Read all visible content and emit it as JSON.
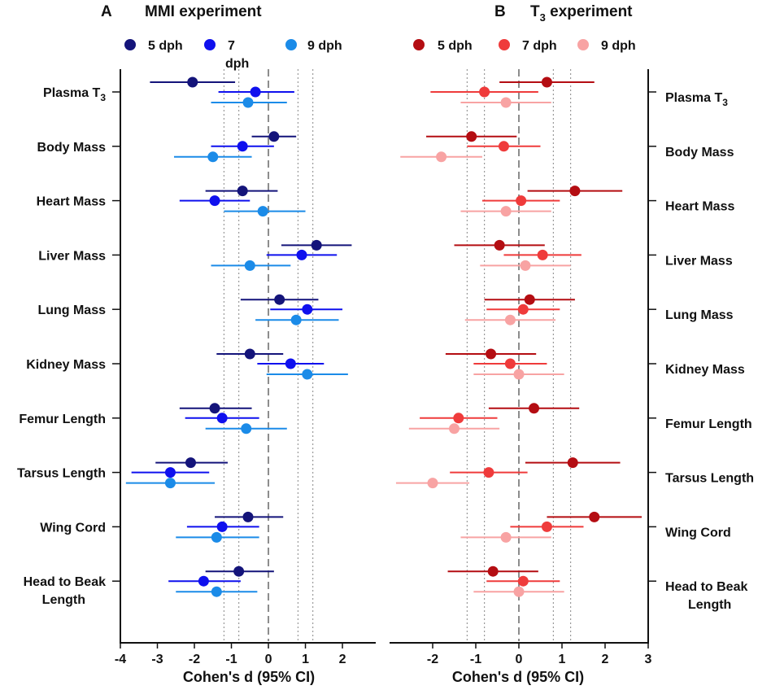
{
  "colors": {
    "mmi": [
      "#14147a",
      "#0f10ee",
      "#1b8be8"
    ],
    "t3": [
      "#b40d12",
      "#ef3b3b",
      "#f8a3a3"
    ]
  },
  "chart_data": [
    {
      "type": "forest",
      "panel_letter": "A",
      "title": "MMI experiment",
      "xlabel": "Cohen's d (95%  CI)",
      "xlim": [
        -4,
        2.9
      ],
      "xticks": [
        -4,
        -3,
        -2,
        -1,
        0,
        1,
        2
      ],
      "reference_lines": [
        -1.2,
        -0.8,
        0,
        0.8,
        1.2
      ],
      "legend": [
        {
          "label": "5 dph"
        },
        {
          "label": "7",
          "label2": "dph"
        },
        {
          "label": "9 dph"
        }
      ],
      "categories": [
        "Plasma T3",
        "Body Mass",
        "Heart Mass",
        "Liver Mass",
        "Lung Mass",
        "Kidney Mass",
        "Femur Length",
        "Tarsus Length",
        "Wing Cord",
        "Head to Beak Length"
      ],
      "series": [
        {
          "name": "5 dph",
          "d": [
            -2.05,
            0.15,
            -0.7,
            1.3,
            0.3,
            -0.5,
            -1.45,
            -2.1,
            -0.55,
            -0.8
          ],
          "lo": [
            -3.2,
            -0.45,
            -1.7,
            0.35,
            -0.75,
            -1.4,
            -2.4,
            -3.05,
            -1.45,
            -1.7
          ],
          "hi": [
            -0.9,
            0.75,
            0.25,
            2.25,
            1.35,
            0.4,
            -0.45,
            -1.1,
            0.4,
            0.15
          ]
        },
        {
          "name": "7 dph",
          "d": [
            -0.35,
            -0.7,
            -1.45,
            0.9,
            1.05,
            0.6,
            -1.25,
            -2.65,
            -1.25,
            -1.75
          ],
          "lo": [
            -1.35,
            -1.55,
            -2.4,
            -0.05,
            0.05,
            -0.3,
            -2.25,
            -3.7,
            -2.2,
            -2.7
          ],
          "hi": [
            0.7,
            0.15,
            -0.5,
            1.85,
            2.0,
            1.5,
            -0.25,
            -1.6,
            -0.25,
            -0.75
          ]
        },
        {
          "name": "9 dph",
          "d": [
            -0.55,
            -1.5,
            -0.15,
            -0.5,
            0.75,
            1.05,
            -0.6,
            -2.65,
            -1.4,
            -1.4
          ],
          "lo": [
            -1.55,
            -2.55,
            -1.2,
            -1.55,
            -0.35,
            -0.05,
            -1.7,
            -3.85,
            -2.5,
            -2.5
          ],
          "hi": [
            0.5,
            -0.45,
            1.0,
            0.6,
            1.9,
            2.15,
            0.5,
            -1.45,
            -0.25,
            -0.3
          ]
        }
      ]
    },
    {
      "type": "forest",
      "panel_letter": "B",
      "title": "T",
      "title_sub": "3",
      "title_rest": " experiment",
      "xlabel": "Cohen's d (95%  CI)",
      "xlim": [
        -3,
        3
      ],
      "xticks": [
        -2,
        -1,
        0,
        1,
        2,
        3
      ],
      "reference_lines": [
        -1.2,
        -0.8,
        0,
        0.8,
        1.2
      ],
      "legend": [
        {
          "label": "5 dph"
        },
        {
          "label": "7 dph"
        },
        {
          "label": "9 dph"
        }
      ],
      "categories": [
        "Plasma  T3",
        "Body Mass",
        "Heart Mass",
        "Liver Mass",
        "Lung Mass",
        "Kidney Mass",
        "Femur Length",
        "Tarsus Length",
        "Wing Cord",
        "Head to Beak Length"
      ],
      "series": [
        {
          "name": "5 dph",
          "d": [
            0.65,
            -1.1,
            1.3,
            -0.45,
            0.25,
            -0.65,
            0.35,
            1.25,
            1.75,
            -0.6
          ],
          "lo": [
            -0.45,
            -2.15,
            0.2,
            -1.5,
            -0.8,
            -1.7,
            -0.7,
            0.15,
            0.65,
            -1.65
          ],
          "hi": [
            1.75,
            -0.05,
            2.4,
            0.6,
            1.3,
            0.4,
            1.4,
            2.35,
            2.85,
            0.45
          ]
        },
        {
          "name": "7 dph",
          "d": [
            -0.8,
            -0.35,
            0.05,
            0.55,
            0.1,
            -0.2,
            -1.4,
            -0.7,
            0.65,
            0.1
          ],
          "lo": [
            -2.05,
            -1.2,
            -0.85,
            -0.35,
            -0.75,
            -1.05,
            -2.3,
            -1.6,
            -0.2,
            -0.75
          ],
          "hi": [
            0.45,
            0.5,
            0.95,
            1.45,
            0.95,
            0.65,
            -0.5,
            0.2,
            1.5,
            0.95
          ]
        },
        {
          "name": "9 dph",
          "d": [
            -0.3,
            -1.8,
            -0.3,
            0.15,
            -0.2,
            0.0,
            -1.5,
            -2.0,
            -0.3,
            0.0
          ],
          "lo": [
            -1.35,
            -2.75,
            -1.35,
            -0.9,
            -1.25,
            -1.05,
            -2.55,
            -2.85,
            -1.35,
            -1.05
          ],
          "hi": [
            0.75,
            -0.85,
            0.75,
            1.2,
            0.85,
            1.05,
            -0.45,
            -1.15,
            0.75,
            1.05
          ]
        }
      ]
    }
  ]
}
